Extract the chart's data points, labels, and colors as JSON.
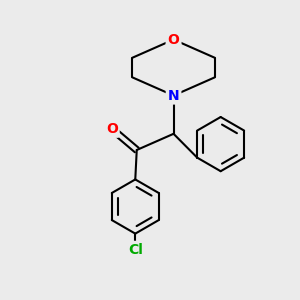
{
  "background_color": "#ebebeb",
  "bond_color": "#000000",
  "bond_width": 1.5,
  "atom_colors": {
    "O": "#ff0000",
    "N": "#0000ff",
    "Cl": "#00aa00",
    "C": "#000000"
  },
  "font_size_atom": 10,
  "font_size_cl": 10,
  "figsize": [
    3.0,
    3.0
  ],
  "dpi": 100,
  "xlim": [
    0,
    10
  ],
  "ylim": [
    0,
    10
  ]
}
